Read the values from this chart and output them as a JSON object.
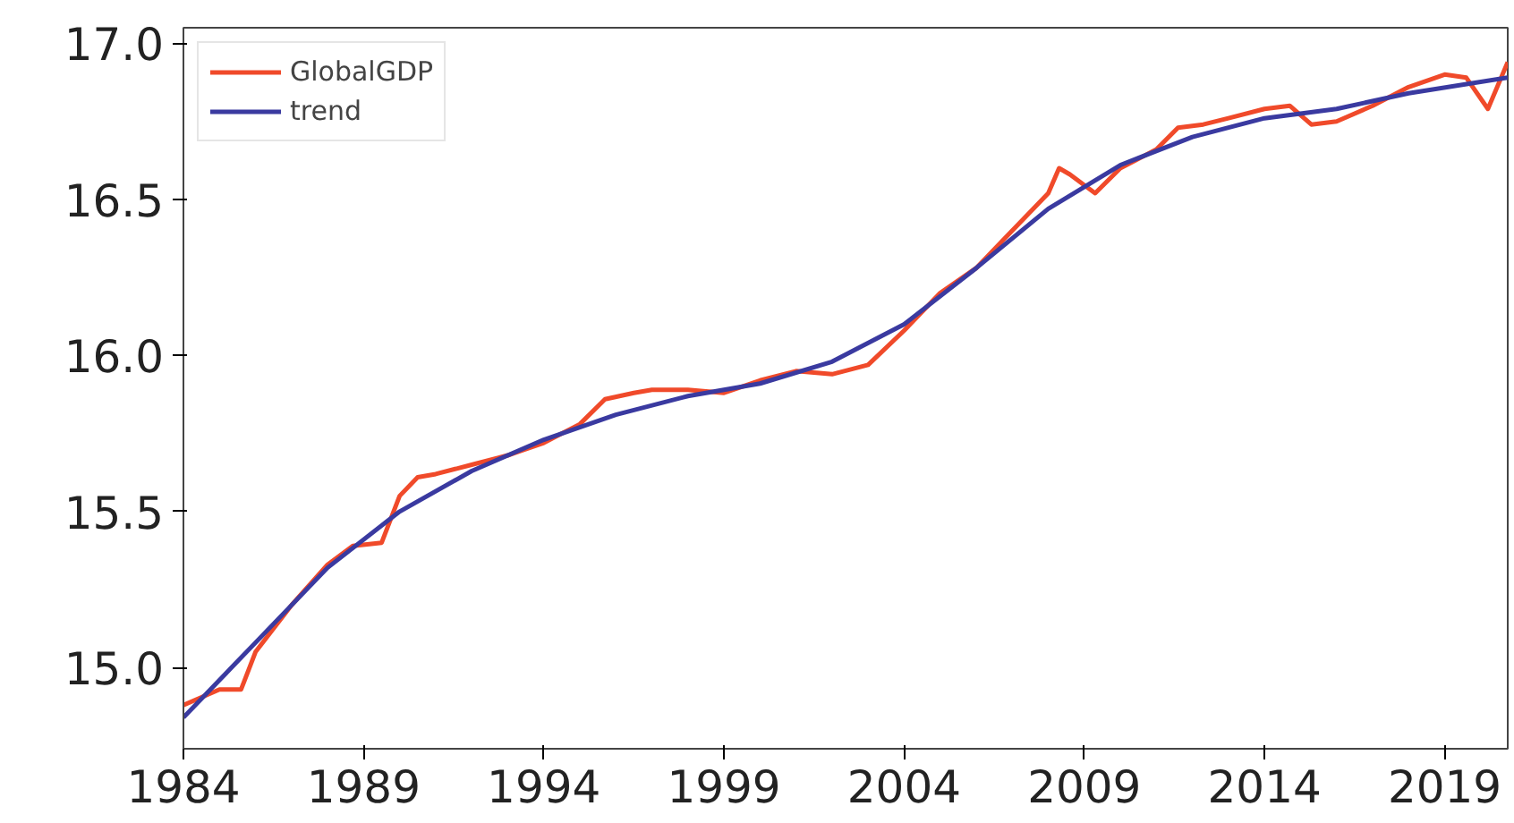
{
  "chart_data": {
    "type": "line",
    "legend": "top left",
    "grid": false,
    "xlim": [
      1984,
      2020.75
    ],
    "xticks": [
      1984,
      1989,
      1994,
      1999,
      2004,
      2009,
      2014,
      2019
    ],
    "ylim": [
      14.74,
      17.05
    ],
    "yticks": [
      {
        "value": 15,
        "label": "15.0"
      },
      {
        "value": 15.5,
        "label": "15.5"
      },
      {
        "value": 16,
        "label": "16.0"
      },
      {
        "value": 16.5,
        "label": "16.5"
      },
      {
        "value": 17,
        "label": "17.0"
      }
    ],
    "series": [
      {
        "name": "GlobalGDP",
        "color": "#f04a2a",
        "x": [
          1984,
          1985,
          1985.6,
          1986,
          1987,
          1988,
          1988.7,
          1989.5,
          1990,
          1990.5,
          1991,
          1992,
          1993,
          1994,
          1995,
          1995.7,
          1996.5,
          1997,
          1998,
          1999,
          2000,
          2001,
          2002,
          2003,
          2004,
          2005,
          2006,
          2007,
          2008,
          2008.3,
          2008.6,
          2009.3,
          2010,
          2011,
          2011.6,
          2012.3,
          2013,
          2014,
          2014.7,
          2015.3,
          2016,
          2017,
          2018,
          2019,
          2019.6,
          2020.2,
          2020.75
        ],
        "values": [
          14.88,
          14.93,
          14.93,
          15.05,
          15.2,
          15.33,
          15.39,
          15.4,
          15.55,
          15.61,
          15.62,
          15.65,
          15.68,
          15.72,
          15.78,
          15.86,
          15.88,
          15.89,
          15.89,
          15.88,
          15.92,
          15.95,
          15.94,
          15.97,
          16.08,
          16.2,
          16.28,
          16.4,
          16.52,
          16.6,
          16.58,
          16.52,
          16.6,
          16.66,
          16.73,
          16.74,
          16.76,
          16.79,
          16.8,
          16.74,
          16.75,
          16.8,
          16.86,
          16.9,
          16.89,
          16.79,
          16.94
        ]
      },
      {
        "name": "trend",
        "color": "#3a3aa0",
        "x": [
          1984,
          1986,
          1988,
          1990,
          1992,
          1994,
          1996,
          1998,
          2000,
          2002,
          2004,
          2006,
          2008,
          2010,
          2012,
          2014,
          2016,
          2018,
          2020.75
        ],
        "values": [
          14.84,
          15.08,
          15.32,
          15.5,
          15.63,
          15.73,
          15.81,
          15.87,
          15.91,
          15.98,
          16.1,
          16.28,
          16.47,
          16.61,
          16.7,
          16.76,
          16.79,
          16.84,
          16.89
        ]
      }
    ]
  }
}
